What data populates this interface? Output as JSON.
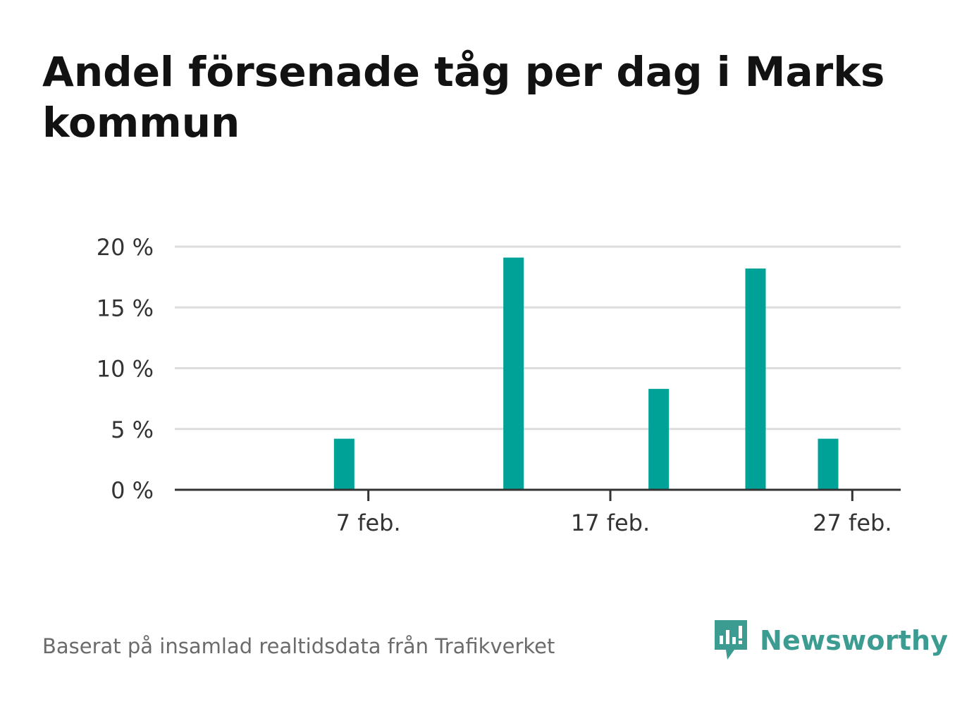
{
  "title": "Andel försenade tåg per dag i Marks kommun",
  "source": "Baserat på insamlad realtidsdata från Trafikverket",
  "brand": {
    "name": "Newsworthy",
    "icon": "newsworthy-logo-icon",
    "color": "#3d9c91"
  },
  "colors": {
    "bar": "#00a298",
    "grid": "#dddddd",
    "axis": "#333333"
  },
  "chart_data": {
    "type": "bar",
    "x_start": "2020-01-30",
    "x_end": "2020-02-29",
    "x": [
      "2020-02-06",
      "2020-02-13",
      "2020-02-19",
      "2020-02-23",
      "2020-02-26"
    ],
    "values": [
      4.2,
      19.1,
      8.3,
      18.2,
      4.2
    ],
    "x_ticks": [
      {
        "date": "2020-02-07",
        "label": "7 feb."
      },
      {
        "date": "2020-02-17",
        "label": "17 feb."
      },
      {
        "date": "2020-02-27",
        "label": "27 feb."
      }
    ],
    "y_ticks": [
      {
        "value": 0,
        "label": "0 %"
      },
      {
        "value": 5,
        "label": "5 %"
      },
      {
        "value": 10,
        "label": "10 %"
      },
      {
        "value": 15,
        "label": "15 %"
      },
      {
        "value": 20,
        "label": "20 %"
      }
    ],
    "ylim": [
      0,
      20
    ],
    "grid": true,
    "legend": "none",
    "title": "Andel försenade tåg per dag i Marks kommun",
    "xlabel": "",
    "ylabel": ""
  }
}
